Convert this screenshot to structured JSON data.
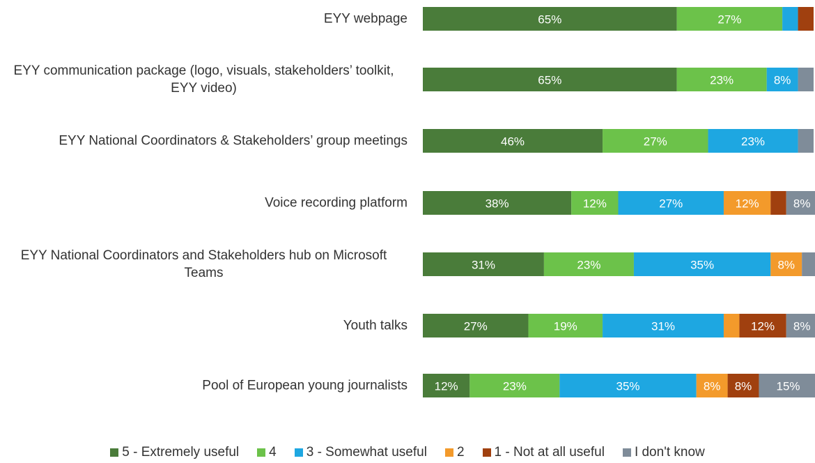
{
  "chart_data": {
    "type": "stacked-bar-horizontal",
    "categories": [
      "EYY webpage",
      "EYY communication package (logo, visuals, stakeholders’ toolkit, EYY video)",
      "EYY National Coordinators & Stakeholders’ group meetings",
      "Voice recording platform",
      "EYY National Coordinators and Stakeholders hub on Microsoft Teams",
      "Youth talks",
      "Pool of European young journalists"
    ],
    "xlim": [
      0,
      100
    ],
    "series": [
      {
        "name": "5 - Extremely useful",
        "color": "#4a7c3a",
        "values": [
          65,
          65,
          46,
          38,
          31,
          27,
          12
        ],
        "value_labels": [
          "65%",
          "65%",
          "46%",
          "38%",
          "31%",
          "27%",
          "12%"
        ]
      },
      {
        "name": "4",
        "color": "#6cc24a",
        "values": [
          27,
          23,
          27,
          12,
          23,
          19,
          23
        ],
        "value_labels": [
          "27%",
          "23%",
          "27%",
          "12%",
          "23%",
          "19%",
          "23%"
        ]
      },
      {
        "name": "3 - Somewhat useful",
        "color": "#1ea7e1",
        "values": [
          4,
          8,
          23,
          27,
          35,
          31,
          35
        ],
        "value_labels": [
          null,
          "8%",
          "23%",
          "27%",
          "35%",
          "31%",
          "35%"
        ]
      },
      {
        "name": "2",
        "color": "#f39a2b",
        "values": [
          0,
          0,
          0,
          12,
          8,
          4,
          8
        ],
        "value_labels": [
          null,
          null,
          null,
          "12%",
          "8%",
          null,
          "8%"
        ]
      },
      {
        "name": "1 - Not at all useful",
        "color": "#a0400f",
        "values": [
          4,
          0,
          0,
          4,
          0,
          12,
          8
        ],
        "value_labels": [
          null,
          null,
          null,
          null,
          null,
          "12%",
          "8%"
        ]
      },
      {
        "name": "I don't know",
        "color": "#7f8c99",
        "values": [
          0,
          4,
          4,
          8,
          4,
          8,
          15
        ],
        "value_labels": [
          null,
          null,
          null,
          "8%",
          null,
          "8%",
          "15%"
        ]
      }
    ],
    "legend": "bottom"
  }
}
